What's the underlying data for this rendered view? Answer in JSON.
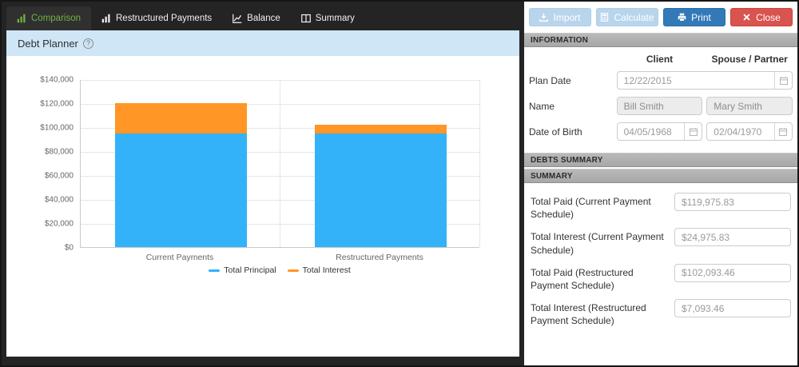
{
  "tabs": [
    {
      "label": "Comparison",
      "icon": "bar-chart-icon",
      "active": true
    },
    {
      "label": "Restructured Payments",
      "icon": "bar-chart-icon",
      "active": false
    },
    {
      "label": "Balance",
      "icon": "line-chart-icon",
      "active": false
    },
    {
      "label": "Summary",
      "icon": "columns-icon",
      "active": false
    }
  ],
  "panel": {
    "title": "Debt Planner"
  },
  "toolbar": {
    "import_label": "Import",
    "calculate_label": "Calculate",
    "print_label": "Print",
    "close_label": "Close"
  },
  "information": {
    "header": "INFORMATION",
    "col_client": "Client",
    "col_spouse": "Spouse / Partner",
    "plan_date": {
      "label": "Plan Date",
      "value": "12/22/2015"
    },
    "name": {
      "label": "Name",
      "client": "Bill Smith",
      "spouse": "Mary Smith"
    },
    "dob": {
      "label": "Date of Birth",
      "client": "04/05/1968",
      "spouse": "02/04/1970"
    }
  },
  "debts_summary": {
    "header": "DEBTS SUMMARY"
  },
  "summary": {
    "header": "SUMMARY",
    "fields": [
      {
        "label": "Total Paid (Current Payment Schedule)",
        "value": "$119,975.83"
      },
      {
        "label": "Total Interest (Current Payment Schedule)",
        "value": "$24,975.83"
      },
      {
        "label": "Total Paid (Restructured Payment Schedule)",
        "value": "$102,093.46"
      },
      {
        "label": "Total Interest (Restructured Payment Schedule)",
        "value": "$7,093.46"
      }
    ]
  },
  "chart_data": {
    "type": "bar",
    "stacked": true,
    "categories": [
      "Current Payments",
      "Restructured Payments"
    ],
    "series": [
      {
        "name": "Total Principal",
        "color": "#33b2fa",
        "values": [
          95000,
          95000
        ]
      },
      {
        "name": "Total Interest",
        "color": "#ff9625",
        "values": [
          24975.83,
          7093.46
        ]
      }
    ],
    "ylim": [
      0,
      140000
    ],
    "ytick_step": 20000,
    "ytick_labels": [
      "$0",
      "$20,000",
      "$40,000",
      "$60,000",
      "$80,000",
      "$100,000",
      "$120,000",
      "$140,000"
    ],
    "xlabel": "",
    "ylabel": "",
    "title": "",
    "grid": true,
    "legend_position": "bottom-center"
  },
  "colors": {
    "accent_green": "#72b341",
    "header_blue": "#cfe6f7",
    "print_blue": "#3379b7",
    "close_red": "#d9534f",
    "series_principal": "#33b2fa",
    "series_interest": "#ff9625"
  }
}
